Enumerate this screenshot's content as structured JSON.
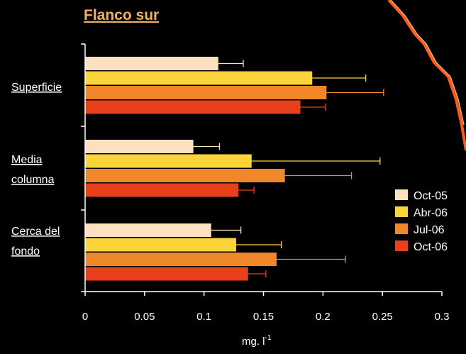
{
  "title": "Flanco sur",
  "colors": {
    "background": "#000000",
    "axis": "#ffffff",
    "title": "#f0b060",
    "decoration": "#ff5a1e"
  },
  "chart_data": {
    "type": "bar",
    "orientation": "horizontal",
    "title": "Flanco sur",
    "xlabel": "mg. l-1",
    "xlabel_base": "mg. l",
    "xlabel_sup": "-1",
    "xlim": [
      0,
      0.3
    ],
    "xticks": [
      "0",
      "0.05",
      "0.1",
      "0.15",
      "0.2",
      "0.25",
      "0.3"
    ],
    "categories": [
      {
        "lines": [
          "Superficie"
        ]
      },
      {
        "lines": [
          "Media",
          "columna"
        ]
      },
      {
        "lines": [
          "Cerca del",
          "fondo"
        ]
      }
    ],
    "series": [
      {
        "name": "Oct-05",
        "color": "#fde0c0",
        "values": [
          0.112,
          0.091,
          0.106
        ],
        "errors": [
          0.021,
          0.022,
          0.025
        ]
      },
      {
        "name": "Abr-06",
        "color": "#fbd43a",
        "values": [
          0.191,
          0.14,
          0.127
        ],
        "errors": [
          0.045,
          0.108,
          0.038
        ]
      },
      {
        "name": "Jul-06",
        "color": "#f0882a",
        "values": [
          0.203,
          0.168,
          0.161
        ],
        "errors": [
          0.048,
          0.056,
          0.058
        ]
      },
      {
        "name": "Oct-06",
        "color": "#e8401a",
        "values": [
          0.181,
          0.129,
          0.137
        ],
        "errors": [
          0.021,
          0.013,
          0.015
        ]
      }
    ],
    "legend_position": "right",
    "grid": false
  }
}
